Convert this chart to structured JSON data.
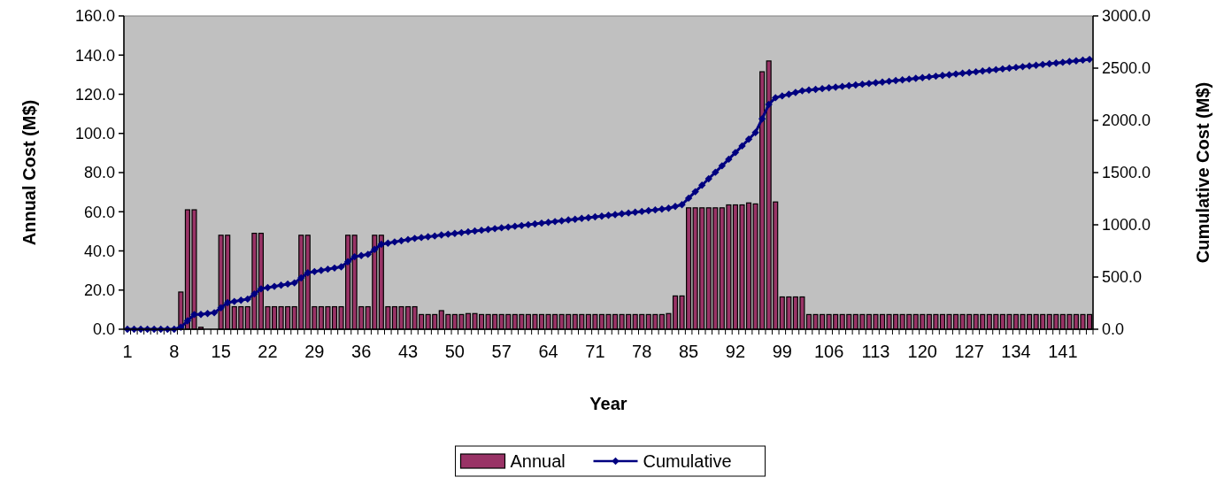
{
  "chart_data": {
    "type": "bar",
    "xlabel": "Year",
    "ylabel": "Annual Cost (M$)",
    "y2label": "Cumulative Cost (M$)",
    "categories": [
      "1",
      null,
      null,
      null,
      null,
      null,
      null,
      "8",
      null,
      null,
      null,
      null,
      null,
      null,
      "15",
      null,
      null,
      null,
      null,
      null,
      null,
      "22",
      null,
      null,
      null,
      null,
      null,
      null,
      "29",
      null,
      null,
      null,
      null,
      null,
      null,
      "36",
      null,
      null,
      null,
      null,
      null,
      null,
      "43",
      null,
      null,
      null,
      null,
      null,
      null,
      "50",
      null,
      null,
      null,
      null,
      null,
      null,
      "57",
      null,
      null,
      null,
      null,
      null,
      null,
      "64",
      null,
      null,
      null,
      null,
      null,
      null,
      "71",
      null,
      null,
      null,
      null,
      null,
      null,
      "78",
      null,
      null,
      null,
      null,
      null,
      null,
      "85",
      null,
      null,
      null,
      null,
      null,
      null,
      "92",
      null,
      null,
      null,
      null,
      null,
      null,
      "99",
      null,
      null,
      null,
      null,
      null,
      null,
      "106",
      null,
      null,
      null,
      null,
      null,
      null,
      "113",
      null,
      null,
      null,
      null,
      null,
      null,
      "120",
      null,
      null,
      null,
      null,
      null,
      null,
      "127",
      null,
      null,
      null,
      null,
      null,
      null,
      "134",
      null,
      null,
      null,
      null,
      null,
      null,
      "141",
      null,
      null,
      null,
      null
    ],
    "series": [
      {
        "name": "Annual",
        "color": "#993366",
        "values": [
          0,
          0,
          0,
          0,
          0,
          0,
          0,
          0,
          19,
          61,
          61,
          1,
          null,
          null,
          48,
          48,
          11.5,
          11.5,
          11.5,
          49,
          49,
          11.5,
          11.5,
          11.5,
          11.5,
          11.5,
          48,
          48,
          11.5,
          11.5,
          11.5,
          11.5,
          11.5,
          48,
          48,
          11.5,
          11.5,
          48,
          48,
          11.5,
          11.5,
          11.5,
          11.5,
          11.5,
          7.5,
          7.5,
          7.5,
          9.5,
          7.5,
          7.5,
          7.5,
          8,
          8,
          7.5,
          7.5,
          7.5,
          7.5,
          7.5,
          7.5,
          7.5,
          7.5,
          7.5,
          7.5,
          7.5,
          7.5,
          7.5,
          7.5,
          7.5,
          7.5,
          7.5,
          7.5,
          7.5,
          7.5,
          7.5,
          7.5,
          7.5,
          7.5,
          7.5,
          7.5,
          7.5,
          7.5,
          8,
          17,
          17,
          62,
          62,
          62,
          62,
          62,
          62,
          63.5,
          63.5,
          63.5,
          64.5,
          64,
          131.5,
          137,
          65,
          16.5,
          16.5,
          16.5,
          16.5,
          7.5,
          7.5,
          7.5,
          7.5,
          7.5,
          7.5,
          7.5,
          7.5,
          7.5,
          7.5,
          7.5,
          7.5,
          7.5,
          7.5,
          7.5,
          7.5,
          7.5,
          7.5,
          7.5,
          7.5,
          7.5,
          7.5,
          7.5,
          7.5,
          7.5,
          7.5,
          7.5,
          7.5,
          7.5,
          7.5,
          7.5,
          7.5,
          7.5,
          7.5,
          7.5,
          7.5,
          7.5,
          7.5,
          7.5,
          7.5,
          7.5,
          7.5,
          7.5
        ]
      },
      {
        "name": "Cumulative",
        "type": "line",
        "axis": "y2",
        "color": "#000080",
        "values": [
          0,
          0,
          0,
          0,
          0,
          0,
          0,
          0,
          19,
          80,
          141,
          142,
          150,
          158,
          206,
          254,
          266,
          277,
          289,
          338,
          387,
          398,
          410,
          421,
          433,
          444,
          492,
          540,
          552,
          563,
          575,
          586,
          598,
          646,
          694,
          705,
          717,
          765,
          813,
          824,
          836,
          847,
          859,
          870,
          878,
          885,
          893,
          902,
          910,
          917,
          925,
          933,
          941,
          948,
          956,
          963,
          971,
          978,
          986,
          993,
          1001,
          1008,
          1016,
          1023,
          1031,
          1038,
          1046,
          1053,
          1061,
          1068,
          1076,
          1083,
          1091,
          1098,
          1106,
          1113,
          1121,
          1128,
          1136,
          1143,
          1151,
          1159,
          1176,
          1193,
          1255,
          1317,
          1379,
          1441,
          1503,
          1565,
          1628,
          1692,
          1755,
          1820,
          1884,
          2015,
          2152,
          2217,
          2234,
          2250,
          2267,
          2283,
          2290,
          2297,
          2304,
          2311,
          2318,
          2325,
          2332,
          2339,
          2346,
          2353,
          2360,
          2367,
          2374,
          2381,
          2388,
          2395,
          2402,
          2409,
          2416,
          2423,
          2430,
          2437,
          2444,
          2451,
          2458,
          2465,
          2472,
          2479,
          2486,
          2493,
          2500,
          2507,
          2514,
          2521,
          2528,
          2535,
          2542,
          2549,
          2556,
          2563,
          2570,
          2577,
          2584
        ]
      }
    ],
    "ylim": [
      0,
      160
    ],
    "yticks": [
      {
        "value": 0,
        "label": "0.0"
      },
      {
        "value": 20,
        "label": "20.0"
      },
      {
        "value": 40,
        "label": "40.0"
      },
      {
        "value": 60,
        "label": "60.0"
      },
      {
        "value": 80,
        "label": "80.0"
      },
      {
        "value": 100,
        "label": "100.0"
      },
      {
        "value": 120,
        "label": "120.0"
      },
      {
        "value": 140,
        "label": "140.0"
      },
      {
        "value": 160,
        "label": "160.0"
      }
    ],
    "y2lim": [
      0,
      3000
    ],
    "y2ticks": [
      {
        "value": 0,
        "label": "0.0"
      },
      {
        "value": 500,
        "label": "500.0"
      },
      {
        "value": 1000,
        "label": "1000.0"
      },
      {
        "value": 1500,
        "label": "1500.0"
      },
      {
        "value": 2000,
        "label": "2000.0"
      },
      {
        "value": 2500,
        "label": "2500.0"
      },
      {
        "value": 3000,
        "label": "3000.0"
      }
    ],
    "marker": "diamond",
    "legend": "bottom"
  }
}
